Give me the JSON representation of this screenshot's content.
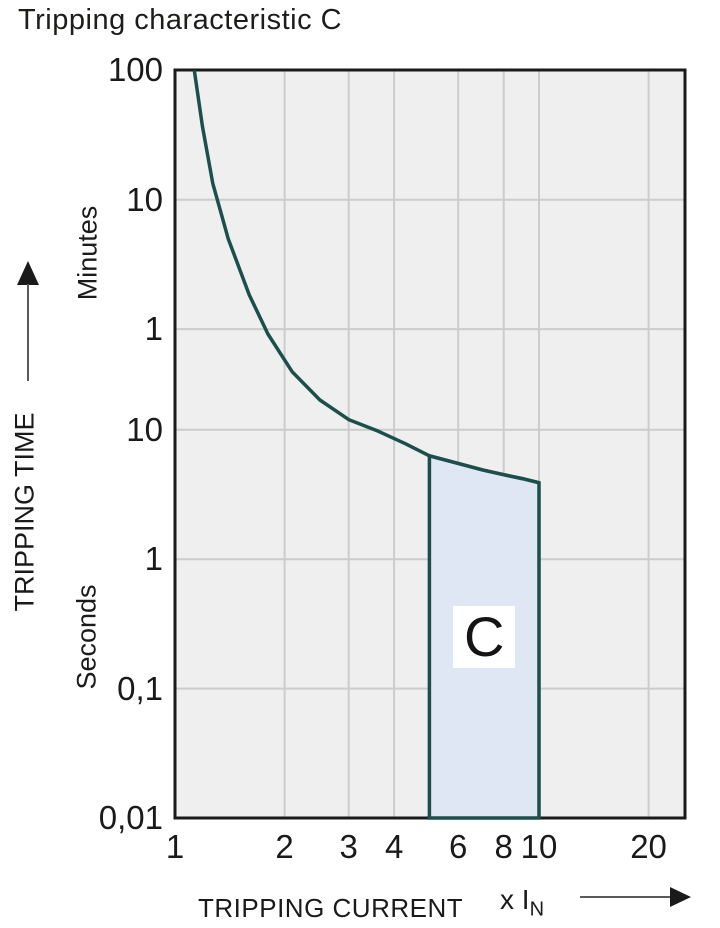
{
  "title": "Tripping characteristic C",
  "colors": {
    "plot_background": "#efefef",
    "gridline": "#cbcccc",
    "frame": "#1a1a1a",
    "curve": "#1c4f4b",
    "region_fill": "#dfe6f4",
    "region_border": "#1c4f4b",
    "text": "#1a1a1a"
  },
  "y_axis": {
    "title": "TRIPPING TIME",
    "unit_top": "Minutes",
    "unit_bottom": "Seconds"
  },
  "x_axis": {
    "title": "TRIPPING CURRENT",
    "multiplier": "x I",
    "multiplier_sub": "N"
  },
  "chart_data": {
    "type": "line",
    "title": "Tripping characteristic C",
    "xlabel": "TRIPPING CURRENT (x In)",
    "ylabel": "TRIPPING TIME",
    "x_scale": "log",
    "y_scale": "log",
    "x_range": [
      1,
      25
    ],
    "y_range_seconds": [
      0.01,
      6000
    ],
    "x_ticks": [
      {
        "label": "1",
        "v": 1
      },
      {
        "label": "2",
        "v": 2
      },
      {
        "label": "3",
        "v": 3
      },
      {
        "label": "4",
        "v": 4
      },
      {
        "label": "6",
        "v": 6
      },
      {
        "label": "8",
        "v": 8
      },
      {
        "label": "10",
        "v": 10
      },
      {
        "label": "20",
        "v": 20
      }
    ],
    "y_ticks": [
      {
        "label": "100",
        "seconds": 6000,
        "unit": "min"
      },
      {
        "label": "10",
        "seconds": 600,
        "unit": "min"
      },
      {
        "label": "1",
        "seconds": 60,
        "unit": "min"
      },
      {
        "label": "10",
        "seconds": 10,
        "unit": "s"
      },
      {
        "label": "1",
        "seconds": 1,
        "unit": "s"
      },
      {
        "label": "0,1",
        "seconds": 0.1,
        "unit": "s"
      },
      {
        "label": "0,01",
        "seconds": 0.01,
        "unit": "s"
      }
    ],
    "x_gridlines": [
      2,
      3,
      4,
      6,
      8,
      10,
      20
    ],
    "y_gridlines_seconds": [
      600,
      60,
      10,
      1,
      0.1
    ],
    "curve": [
      [
        1.13,
        6000
      ],
      [
        1.19,
        2200
      ],
      [
        1.27,
        800
      ],
      [
        1.4,
        300
      ],
      [
        1.6,
        110
      ],
      [
        1.8,
        55
      ],
      [
        2.1,
        28
      ],
      [
        2.5,
        17
      ],
      [
        3.0,
        12
      ],
      [
        3.6,
        9.8
      ],
      [
        4.3,
        7.8
      ],
      [
        5.0,
        6.3
      ],
      [
        6.0,
        5.5
      ],
      [
        7.0,
        4.9
      ],
      [
        8.0,
        4.5
      ],
      [
        9.0,
        4.2
      ],
      [
        10.0,
        3.9
      ]
    ],
    "region": {
      "label": "C",
      "x_from": 5,
      "x_to": 10,
      "bottom_seconds": 0.01,
      "top_curve": [
        [
          5,
          6.3
        ],
        [
          6,
          5.5
        ],
        [
          7,
          4.9
        ],
        [
          8,
          4.5
        ],
        [
          9,
          4.2
        ],
        [
          10,
          3.9
        ]
      ]
    }
  }
}
